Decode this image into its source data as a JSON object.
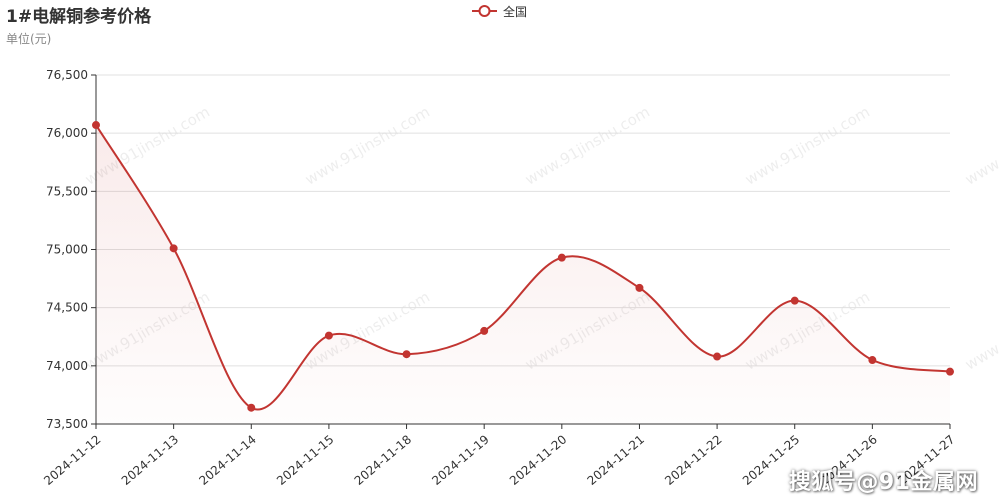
{
  "title": "1#电解铜参考价格",
  "unit_label": "单位(元)",
  "legend": {
    "label": "全国"
  },
  "colors": {
    "series": "#c23531",
    "grid": "#e0e0e0",
    "axis": "#333333",
    "text": "#333333"
  },
  "watermark": {
    "diagonal_text": "www.91jinshu.com",
    "corner_text": "搜狐号@91金属网"
  },
  "chart_data": {
    "type": "area",
    "title": "1#电解铜参考价格",
    "ylabel": "单位(元)",
    "xlabel": "",
    "ylim": [
      73500,
      76500
    ],
    "yticks": [
      73500,
      74000,
      74500,
      75000,
      75500,
      76000,
      76500
    ],
    "ytick_labels": [
      "73,500",
      "74,000",
      "74,500",
      "75,000",
      "75,500",
      "76,000",
      "76,500"
    ],
    "grid": true,
    "smooth": true,
    "legend_position": "top-center",
    "categories": [
      "2024-11-12",
      "2024-11-13",
      "2024-11-14",
      "2024-11-15",
      "2024-11-18",
      "2024-11-19",
      "2024-11-20",
      "2024-11-21",
      "2024-11-22",
      "2024-11-25",
      "2024-11-26",
      "2024-11-27"
    ],
    "series": [
      {
        "name": "全国",
        "values": [
          76070,
          75010,
          73640,
          74260,
          74100,
          74300,
          74930,
          74670,
          74080,
          74560,
          74050,
          73950
        ]
      }
    ]
  }
}
